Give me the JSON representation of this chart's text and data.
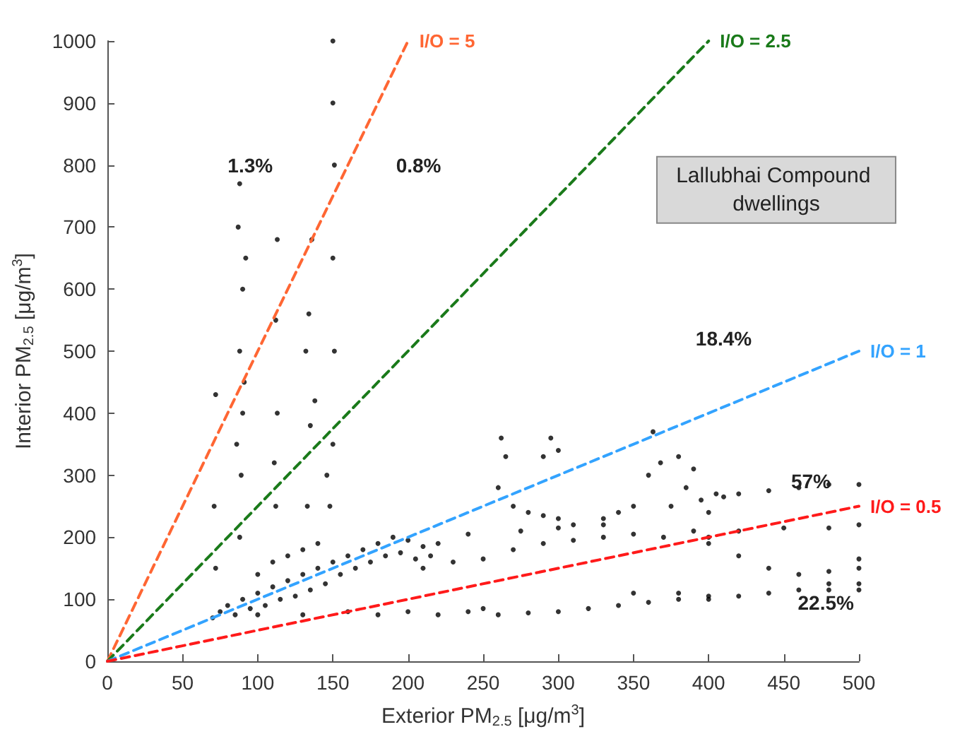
{
  "chart_data": {
    "type": "scatter",
    "xlabel": "Exterior PM$_{2.5}$ [μg/m$^{3}$]",
    "ylabel": "Interior PM$_{2.5}$ [μg/m$^{3}$]",
    "xlim": [
      0,
      500
    ],
    "xticks": [
      0,
      50,
      100,
      150,
      200,
      250,
      300,
      350,
      400,
      450,
      500
    ],
    "ylim": [
      0,
      1000
    ],
    "yticks": [
      0,
      100,
      200,
      300,
      400,
      500,
      600,
      700,
      800,
      900,
      1000
    ],
    "grid": false,
    "legend": false,
    "marker": "circle",
    "annotations": [
      "1.3%",
      "0.8%",
      "18.4%",
      "57%",
      "22.5%",
      "Lallubhai Compound dwellings"
    ],
    "series": [
      {
        "color": "#000000",
        "x": [
          70,
          75,
          80,
          85,
          90,
          95,
          100,
          105,
          110,
          115,
          120,
          125,
          130,
          135,
          140,
          145,
          150,
          155,
          160,
          165,
          170,
          175,
          180,
          185,
          190,
          195,
          200,
          205,
          210,
          215,
          100,
          110,
          120,
          130,
          140,
          88,
          89,
          90,
          88,
          90,
          87,
          88,
          92,
          91,
          86,
          72,
          71,
          72,
          112,
          113,
          112,
          113,
          111,
          133,
          135,
          138,
          134,
          136,
          132,
          148,
          150,
          151,
          150,
          151,
          150,
          150,
          146,
          100,
          130,
          160,
          180,
          200,
          220,
          240,
          250,
          260,
          280,
          300,
          320,
          340,
          360,
          380,
          400,
          220,
          240,
          260,
          262,
          265,
          270,
          280,
          290,
          300,
          310,
          290,
          295,
          300,
          330,
          340,
          350,
          360,
          363,
          368,
          375,
          385,
          390,
          380,
          395,
          400,
          405,
          410,
          420,
          210,
          230,
          250,
          270,
          290,
          310,
          330,
          350,
          370,
          390,
          400,
          275,
          300,
          330,
          400,
          420,
          440,
          460,
          480,
          500,
          500,
          440,
          460,
          480,
          500,
          420,
          450,
          480,
          500,
          350,
          380,
          400,
          420,
          440,
          460,
          480,
          500,
          500,
          480
        ],
        "values": [
          70,
          80,
          90,
          75,
          100,
          85,
          110,
          90,
          120,
          100,
          130,
          105,
          140,
          115,
          150,
          125,
          160,
          140,
          170,
          150,
          180,
          160,
          190,
          170,
          200,
          175,
          195,
          165,
          185,
          170,
          140,
          160,
          170,
          180,
          190,
          200,
          300,
          400,
          500,
          600,
          700,
          770,
          650,
          450,
          350,
          150,
          250,
          430,
          250,
          400,
          550,
          680,
          320,
          250,
          380,
          420,
          560,
          680,
          500,
          250,
          350,
          500,
          650,
          800,
          900,
          1000,
          300,
          75,
          75,
          80,
          75,
          80,
          75,
          80,
          85,
          75,
          78,
          80,
          85,
          90,
          95,
          100,
          100,
          190,
          205,
          280,
          360,
          330,
          250,
          240,
          235,
          230,
          220,
          330,
          360,
          340,
          230,
          240,
          250,
          300,
          370,
          320,
          250,
          280,
          310,
          330,
          260,
          240,
          270,
          265,
          270,
          150,
          160,
          165,
          180,
          190,
          195,
          200,
          205,
          200,
          210,
          200,
          210,
          215,
          220,
          190,
          170,
          150,
          140,
          145,
          150,
          165,
          275,
          280,
          285,
          285,
          210,
          215,
          215,
          220,
          110,
          110,
          105,
          105,
          110,
          115,
          115,
          115,
          125,
          125
        ]
      },
      {
        "type": "line",
        "name": "I/O = 5",
        "color": "#ff6633",
        "line_style": "dashed",
        "marker": "none",
        "x": [
          0,
          200
        ],
        "values": [
          0,
          1000
        ]
      },
      {
        "type": "line",
        "name": "I/O = 2.5",
        "color": "#1a7a1a",
        "line_style": "dashed",
        "marker": "none",
        "x": [
          0,
          400
        ],
        "values": [
          0,
          1000
        ]
      },
      {
        "type": "line",
        "name": "I/O = 1",
        "color": "#33a3ff",
        "line_style": "dashed",
        "marker": "none",
        "x": [
          0,
          500
        ],
        "values": [
          0,
          500
        ]
      },
      {
        "type": "line",
        "name": "I/O = 0.5",
        "color": "#ff1a1a",
        "line_style": "dashed",
        "marker": "none",
        "x": [
          0,
          500
        ],
        "values": [
          0,
          250
        ]
      }
    ]
  }
}
